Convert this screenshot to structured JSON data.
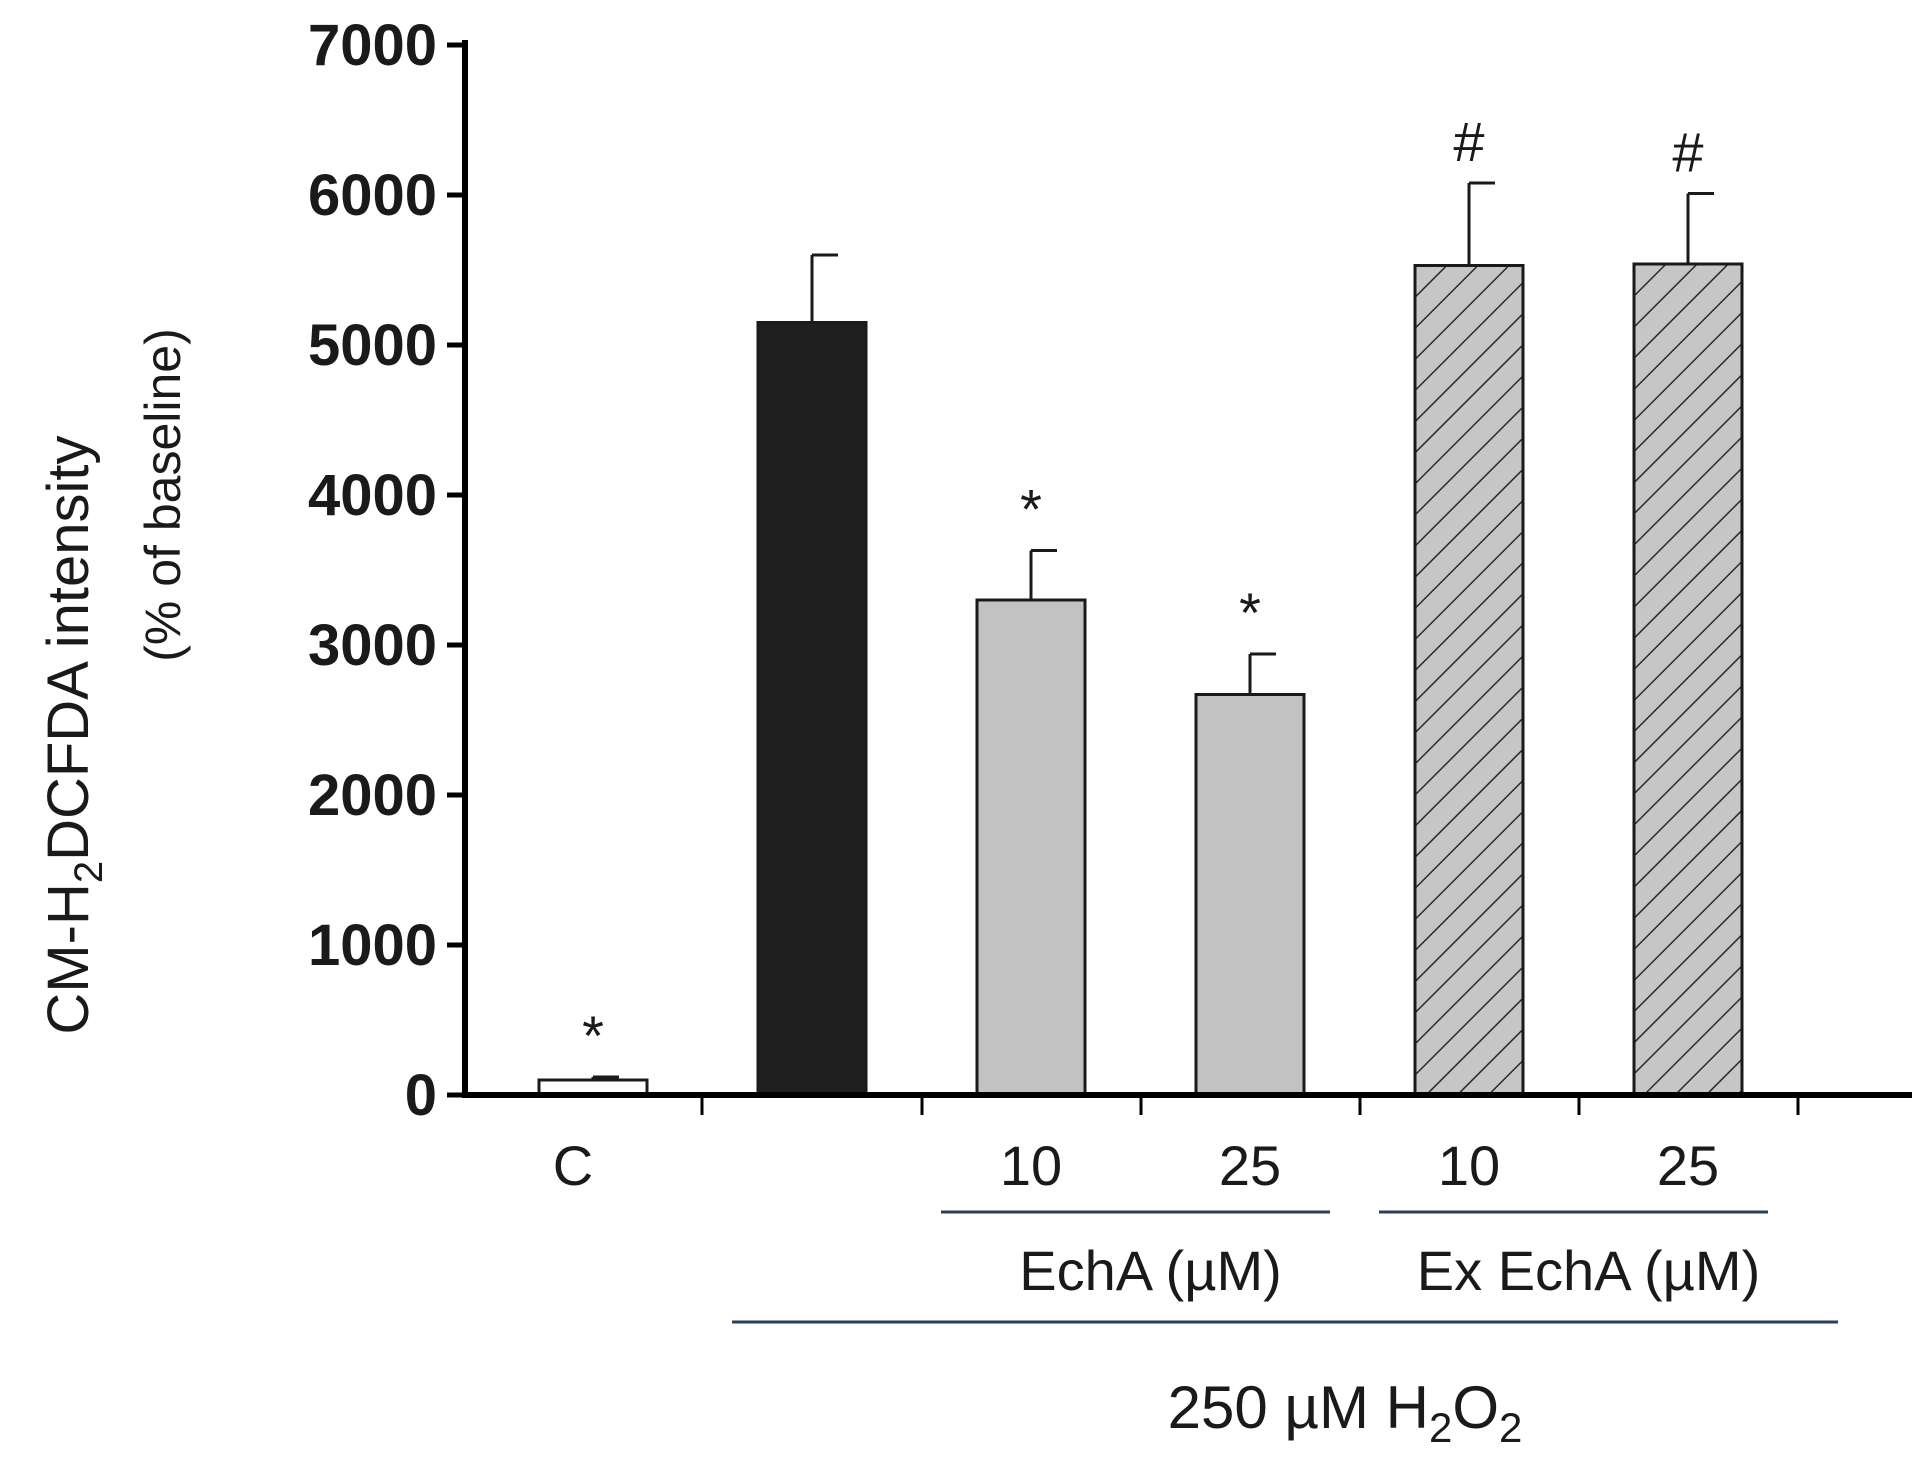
{
  "chart_data": {
    "type": "bar",
    "ylabel_parts": [
      "CM-H",
      "2",
      "DCFDA intensity"
    ],
    "ylabel_sub": "(% of baseline)",
    "ylim": [
      0,
      7000
    ],
    "yticks": [
      "0",
      "1000",
      "2000",
      "3000",
      "4000",
      "5000",
      "6000",
      "7000"
    ],
    "bars": [
      {
        "category": "C",
        "value": 100,
        "error": 20,
        "fill": "white",
        "annotation": "*"
      },
      {
        "category": "",
        "value": 5150,
        "error": 450,
        "fill": "black",
        "annotation": ""
      },
      {
        "category": "10",
        "value": 3300,
        "error": 330,
        "fill": "gray",
        "annotation": "*"
      },
      {
        "category": "25",
        "value": 2670,
        "error": 270,
        "fill": "gray",
        "annotation": "*"
      },
      {
        "category": "10",
        "value": 5530,
        "error": 550,
        "fill": "gray-hatched",
        "annotation": "#"
      },
      {
        "category": "25",
        "value": 5540,
        "error": 470,
        "fill": "gray-hatched",
        "annotation": "#"
      }
    ],
    "groups": [
      {
        "label": "EchA (µM)",
        "bars": [
          2,
          3
        ]
      },
      {
        "label": "Ex EchA (µM)",
        "bars": [
          4,
          5
        ]
      }
    ],
    "treatment": {
      "parts": [
        "250 µM H",
        "2",
        "O",
        "2"
      ],
      "bars": [
        1,
        5
      ]
    },
    "colors": {
      "white": "#ffffff",
      "black": "#1f1f1f",
      "gray": "#c2c2c2",
      "gray-hatched": "#c6c6c6",
      "axis": "#000000",
      "bracket": "#2b3e5c"
    },
    "grid": false,
    "legend": "none"
  }
}
